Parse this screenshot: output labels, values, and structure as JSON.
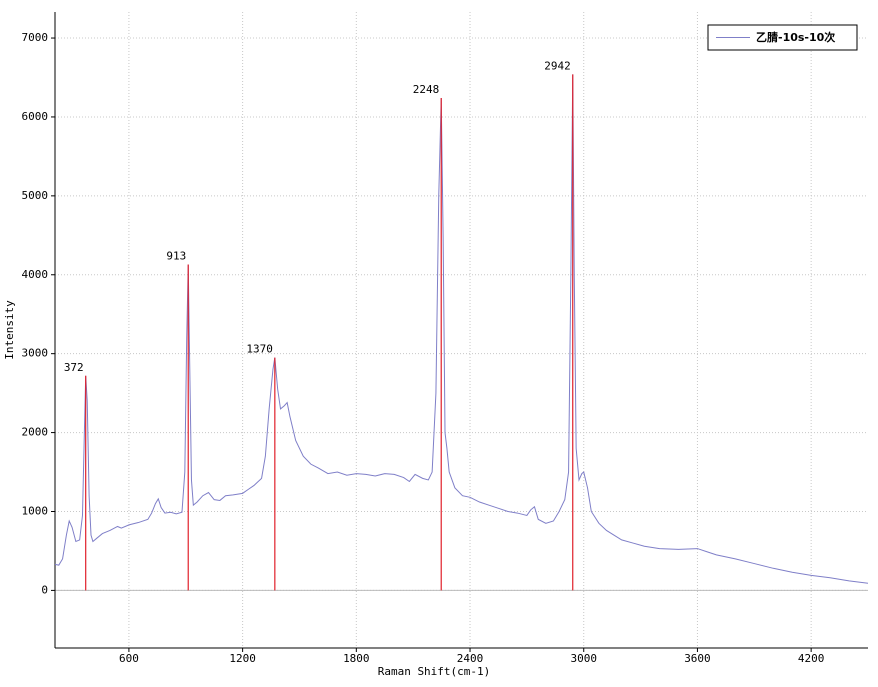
{
  "chart_data": {
    "type": "line",
    "x_label": "Raman Shift(cm-1)",
    "y_label": "Intensity",
    "xlim": [
      210,
      4500
    ],
    "ylim": [
      -730,
      7330
    ],
    "xticks": [
      600,
      1200,
      1800,
      2400,
      3000,
      3600,
      4200
    ],
    "yticks": [
      0,
      1000,
      2000,
      3000,
      4000,
      5000,
      6000,
      7000
    ],
    "grid": true,
    "legend": "upper right",
    "x": [
      210,
      230,
      250,
      270,
      285,
      300,
      320,
      340,
      355,
      365,
      372,
      380,
      390,
      400,
      410,
      430,
      460,
      500,
      540,
      560,
      600,
      650,
      700,
      720,
      740,
      755,
      770,
      790,
      820,
      850,
      880,
      895,
      905,
      913,
      920,
      930,
      940,
      960,
      990,
      1020,
      1050,
      1080,
      1110,
      1150,
      1200,
      1230,
      1260,
      1300,
      1320,
      1340,
      1360,
      1370,
      1385,
      1400,
      1420,
      1435,
      1450,
      1480,
      1520,
      1560,
      1600,
      1650,
      1700,
      1750,
      1800,
      1850,
      1900,
      1950,
      2000,
      2050,
      2080,
      2110,
      2150,
      2180,
      2200,
      2220,
      2235,
      2248,
      2258,
      2268,
      2278,
      2290,
      2320,
      2360,
      2400,
      2450,
      2500,
      2550,
      2600,
      2650,
      2700,
      2720,
      2740,
      2760,
      2800,
      2840,
      2870,
      2900,
      2920,
      2932,
      2942,
      2950,
      2960,
      2975,
      2990,
      3000,
      3020,
      3040,
      3080,
      3120,
      3160,
      3200,
      3260,
      3320,
      3400,
      3500,
      3600,
      3650,
      3700,
      3800,
      3900,
      4000,
      4100,
      4200,
      4300,
      4400,
      4500
    ],
    "series": [
      {
        "name": "乙腈-10s-10次",
        "color": "#7f7fc8",
        "values": [
          330,
          320,
          400,
          700,
          880,
          800,
          620,
          640,
          950,
          2000,
          2720,
          2400,
          1200,
          700,
          620,
          660,
          720,
          760,
          810,
          790,
          830,
          860,
          900,
          980,
          1100,
          1160,
          1050,
          980,
          990,
          970,
          990,
          1500,
          3200,
          4130,
          3000,
          1400,
          1080,
          1120,
          1200,
          1240,
          1150,
          1140,
          1200,
          1210,
          1230,
          1280,
          1330,
          1420,
          1700,
          2300,
          2800,
          2950,
          2550,
          2300,
          2340,
          2380,
          2200,
          1900,
          1700,
          1600,
          1550,
          1480,
          1500,
          1460,
          1480,
          1470,
          1450,
          1480,
          1470,
          1430,
          1380,
          1470,
          1420,
          1400,
          1500,
          2500,
          5000,
          6240,
          4500,
          2000,
          1800,
          1500,
          1300,
          1200,
          1180,
          1120,
          1080,
          1040,
          1000,
          980,
          950,
          1020,
          1060,
          900,
          850,
          880,
          1000,
          1150,
          1500,
          4000,
          6540,
          4000,
          1800,
          1400,
          1480,
          1500,
          1300,
          1000,
          850,
          760,
          700,
          640,
          600,
          560,
          530,
          520,
          530,
          490,
          450,
          400,
          340,
          280,
          230,
          190,
          160,
          120,
          90
        ]
      }
    ],
    "peaks": {
      "color": "#e0202a",
      "x": [
        372,
        913,
        1370,
        2248,
        2942
      ],
      "values": [
        2720,
        4130,
        2950,
        6240,
        6540
      ]
    }
  }
}
